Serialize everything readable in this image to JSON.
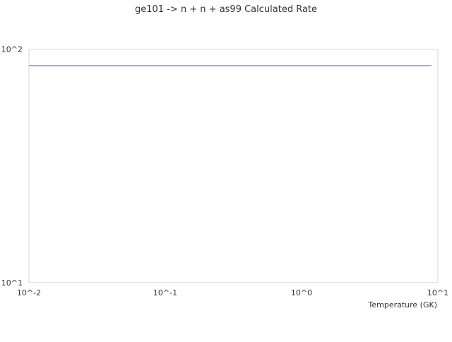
{
  "chart_data": {
    "type": "line",
    "title": "ge101 -> n + n + as99 Calculated Rate",
    "xlabel": "Temperature (GK)",
    "ylabel": "",
    "xscale": "log",
    "yscale": "log",
    "xlim": [
      0.01,
      10
    ],
    "ylim": [
      10,
      100
    ],
    "xticks": [
      "10^-2",
      "10^-1",
      "10^0",
      "10^1"
    ],
    "yticks": [
      "10^1",
      "10^2"
    ],
    "grid": false,
    "series": [
      {
        "x": [
          0.01,
          9
        ],
        "y": [
          85,
          85
        ],
        "color": "#6fa8dc"
      }
    ]
  }
}
